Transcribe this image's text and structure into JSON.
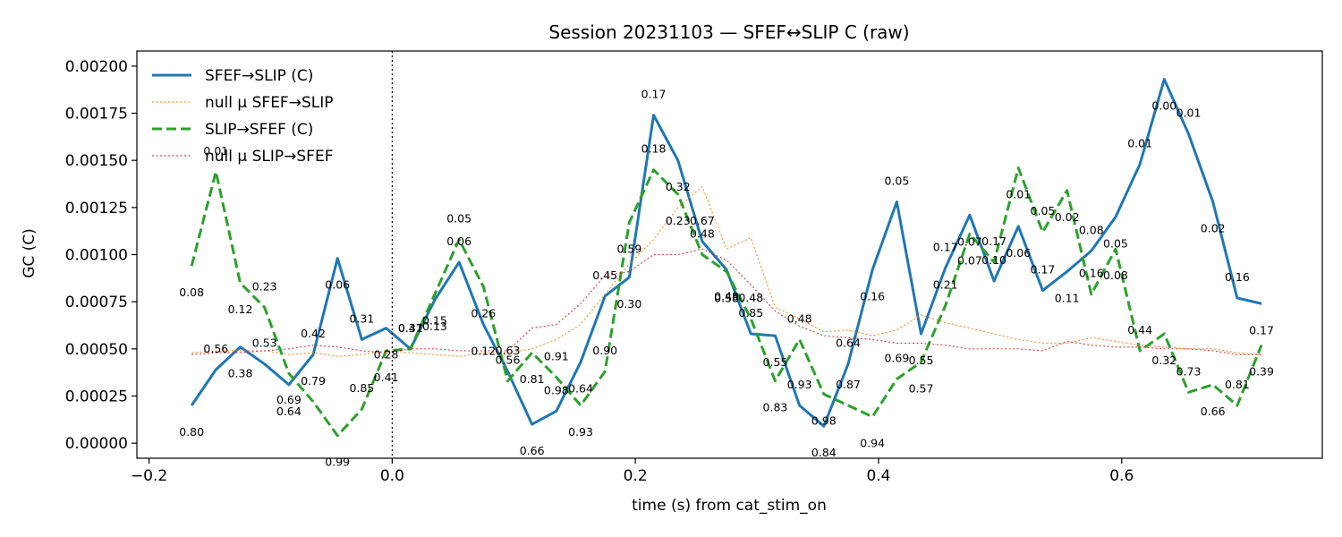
{
  "chart_data": {
    "type": "line",
    "title": "Session 20231103 — SFEF↔SLIP C (raw)",
    "xlabel": "time (s) from cat_stim_on",
    "ylabel": "GC (C)",
    "xlim": [
      -0.21,
      0.765
    ],
    "ylim": [
      -8e-05,
      0.00208
    ],
    "xticks": [
      -0.2,
      0.0,
      0.2,
      0.4,
      0.6
    ],
    "xtick_labels": [
      "−0.2",
      "0.0",
      "0.2",
      "0.4",
      "0.6"
    ],
    "yticks": [
      0.0,
      0.00025,
      0.0005,
      0.00075,
      0.001,
      0.00125,
      0.0015,
      0.00175,
      0.002
    ],
    "ytick_labels": [
      "0.00000",
      "0.00025",
      "0.00050",
      "0.00075",
      "0.00100",
      "0.00125",
      "0.00150",
      "0.00175",
      "0.00200"
    ],
    "vline_x": 0.0,
    "grid": false,
    "legend_position": "top-left",
    "x": [
      -0.165,
      -0.145,
      -0.125,
      -0.105,
      -0.085,
      -0.065,
      -0.045,
      -0.025,
      -0.005,
      0.015,
      0.035,
      0.055,
      0.075,
      0.095,
      0.115,
      0.135,
      0.155,
      0.175,
      0.195,
      0.215,
      0.235,
      0.255,
      0.275,
      0.295,
      0.315,
      0.335,
      0.355,
      0.375,
      0.395,
      0.415,
      0.435,
      0.455,
      0.475,
      0.495,
      0.515,
      0.535,
      0.555,
      0.575,
      0.595,
      0.615,
      0.635,
      0.655,
      0.675,
      0.695,
      0.715
    ],
    "series": [
      {
        "name": "SFEF→SLIP (C)",
        "style": "solid",
        "color": "#1f77b4",
        "values": [
          0.0002,
          0.00039,
          0.00051,
          0.00042,
          0.00031,
          0.00047,
          0.00098,
          0.00055,
          0.00061,
          0.0005,
          0.00076,
          0.00096,
          0.00063,
          0.00038,
          0.0001,
          0.00017,
          0.00043,
          0.00078,
          0.00088,
          0.00174,
          0.0015,
          0.00107,
          0.00092,
          0.00058,
          0.00057,
          0.0002,
          9e-05,
          0.00042,
          0.00092,
          0.00128,
          0.00058,
          0.00093,
          0.00121,
          0.00086,
          0.00115,
          0.00081,
          0.00091,
          0.00102,
          0.0012,
          0.00148,
          0.00193,
          0.00164,
          0.00128,
          0.00077,
          0.00074
        ],
        "p_labels": [
          "0.80",
          "0.56",
          "0.38",
          "0.53",
          "0.64",
          "0.42",
          "0.06",
          "0.31",
          "0.28",
          "0.41",
          "0.13",
          "0.06",
          "0.12",
          "0.63",
          "0.66",
          "0.98",
          "0.64",
          "0.45",
          "0.30",
          "0.17",
          "0.32",
          "0.67",
          "0.48",
          "0.85",
          "0.55",
          "0.93",
          "0.84",
          "0.64",
          "0.16",
          "0.05",
          "0.55",
          "0.17",
          "0.07",
          "0.10",
          "0.06",
          "0.17",
          "0.11",
          "0.08",
          "0.05",
          "0.01",
          "0.00",
          "0.01",
          "0.02",
          "0.16",
          "0.17"
        ]
      },
      {
        "name": "null μ SFEF→SLIP",
        "style": "dotted",
        "color": "#ff7f0e",
        "values": [
          0.00048,
          0.00049,
          0.00049,
          0.00049,
          0.00047,
          0.00048,
          0.00046,
          0.00047,
          0.00049,
          0.00048,
          0.00047,
          0.00046,
          0.00048,
          0.00048,
          0.0005,
          0.00055,
          0.00063,
          0.00079,
          0.00095,
          0.00108,
          0.00125,
          0.00136,
          0.00103,
          0.00109,
          0.00072,
          0.00066,
          0.00059,
          0.0006,
          0.00057,
          0.0006,
          0.00068,
          0.00064,
          0.00061,
          0.00058,
          0.00055,
          0.00053,
          0.00053,
          0.00056,
          0.00054,
          0.00052,
          0.00051,
          0.0005,
          0.0005,
          0.00048,
          0.00047
        ]
      },
      {
        "name": "SLIP→SFEF (C)",
        "style": "dashed",
        "color": "#2ca02c",
        "values": [
          0.00094,
          0.00144,
          0.00085,
          0.00072,
          0.00037,
          0.00022,
          4e-05,
          0.00018,
          0.00049,
          0.0005,
          0.00079,
          0.00108,
          0.00083,
          0.00033,
          0.00048,
          0.00035,
          0.0002,
          0.00038,
          0.00117,
          0.00145,
          0.00132,
          0.001,
          0.00091,
          0.00066,
          0.00033,
          0.00055,
          0.00026,
          0.0002,
          0.00014,
          0.00034,
          0.00043,
          0.00073,
          0.00111,
          0.00096,
          0.00146,
          0.00112,
          0.00134,
          0.00079,
          0.00103,
          0.00049,
          0.00058,
          0.00027,
          0.00031,
          0.0002,
          0.00052
        ],
        "p_labels": [
          "0.08",
          "0.01",
          "0.12",
          "0.23",
          "0.69",
          "0.79",
          "0.99",
          "0.85",
          "0.41",
          "0.37",
          "0.15",
          "0.05",
          "0.26",
          "0.56",
          "0.81",
          "0.91",
          "0.93",
          "0.90",
          "0.59",
          "0.18",
          "0.23",
          "0.48",
          "0.58",
          "0.48",
          "0.83",
          "0.48",
          "0.98",
          "0.87",
          "0.94",
          "0.69",
          "0.57",
          "0.21",
          "0.07",
          "0.17",
          "0.01",
          "0.05",
          "0.02",
          "0.16",
          "0.08",
          "0.44",
          "0.32",
          "0.73",
          "0.66",
          "0.81",
          "0.39"
        ]
      },
      {
        "name": "null μ SLIP→SFEF",
        "style": "dotted",
        "color": "#d62728",
        "values": [
          0.00047,
          0.00048,
          0.00048,
          0.00049,
          0.0005,
          0.00052,
          0.00051,
          0.00049,
          0.00048,
          0.0005,
          0.0005,
          0.00049,
          0.00049,
          0.00049,
          0.00061,
          0.00063,
          0.00074,
          0.00089,
          0.00091,
          0.001,
          0.001,
          0.00103,
          0.00097,
          0.00084,
          0.0007,
          0.00062,
          0.00057,
          0.00056,
          0.00055,
          0.00053,
          0.00053,
          0.00052,
          0.0005,
          0.0005,
          0.0005,
          0.00049,
          0.00054,
          0.00052,
          0.00051,
          0.00051,
          0.0005,
          0.0005,
          0.00049,
          0.00047,
          0.00047
        ]
      }
    ]
  }
}
